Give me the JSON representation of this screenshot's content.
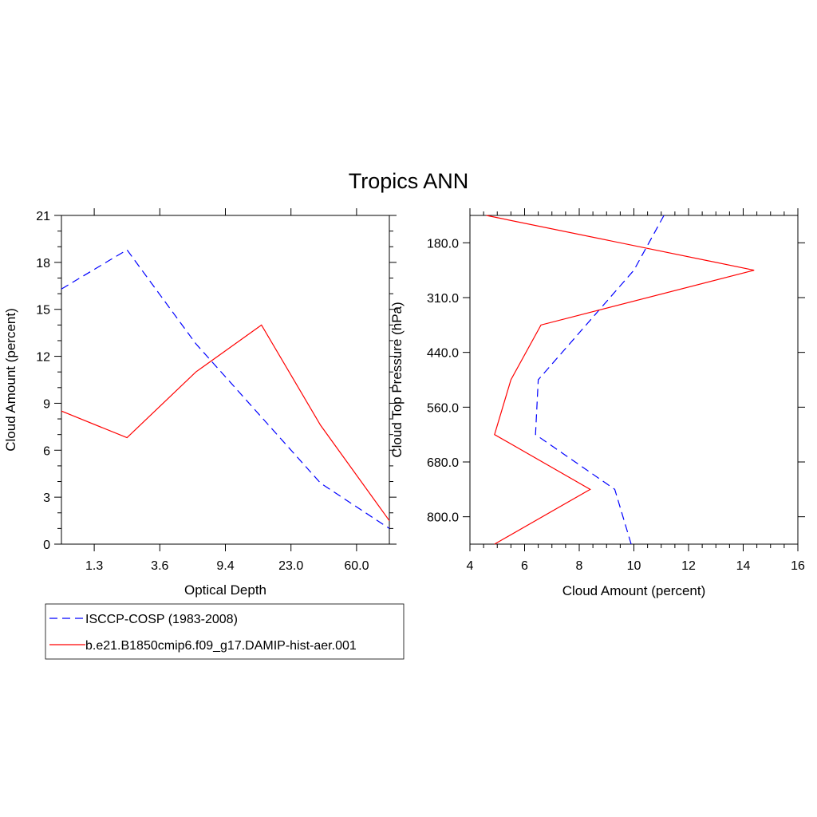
{
  "title": "Tropics ANN",
  "colors": {
    "obs": "#0000ff",
    "model": "#ff0000",
    "axis": "#000000"
  },
  "legend": [
    {
      "label": "ISCCP-COSP (1983-2008)",
      "color": "#0000ff",
      "dash": "dashed"
    },
    {
      "label": "b.e21.B1850cmip6.f09_g17.DAMIP-hist-aer.001",
      "color": "#ff0000",
      "dash": "solid"
    }
  ],
  "chart_data": [
    {
      "type": "line",
      "panel": "left",
      "xlabel": "Optical Depth",
      "ylabel": "Cloud Amount (percent)",
      "xticklabels": [
        "1.3",
        "3.6",
        "9.4",
        "23.0",
        "60.0"
      ],
      "x_index_range": [
        0,
        10
      ],
      "xtick_index": [
        1,
        3,
        5,
        7,
        9
      ],
      "ylim": [
        0,
        21
      ],
      "yticks": [
        0,
        3,
        6,
        9,
        12,
        15,
        18,
        21
      ],
      "series": [
        {
          "name": "ISCCP-COSP (1983-2008)",
          "x_index": [
            0,
            2,
            4.1,
            7.9,
            10
          ],
          "values": [
            16.3,
            18.8,
            12.8,
            3.9,
            1.0
          ]
        },
        {
          "name": "b.e21.B1850cmip6.f09_g17.DAMIP-hist-aer.001",
          "x_index": [
            0,
            2,
            4.1,
            6.1,
            7.9,
            10
          ],
          "values": [
            8.5,
            6.8,
            11.0,
            14.0,
            7.6,
            1.5
          ]
        }
      ]
    },
    {
      "type": "line",
      "panel": "right",
      "xlabel": "Cloud Amount (percent)",
      "ylabel": "Cloud Top Pressure (hPa)",
      "xlim": [
        4,
        16
      ],
      "xticks": [
        4,
        6,
        8,
        10,
        12,
        14,
        16
      ],
      "yticklabels": [
        "180.0",
        "310.0",
        "440.0",
        "560.0",
        "680.0",
        "800.0"
      ],
      "y_index_range": [
        0,
        12
      ],
      "ytick_index": [
        1,
        3,
        5,
        7,
        9,
        11
      ],
      "series": [
        {
          "name": "ISCCP-COSP (1983-2008)",
          "y_index": [
            0,
            2,
            6,
            8,
            10,
            12
          ],
          "values": [
            11.1,
            10.0,
            6.5,
            6.4,
            9.3,
            9.9
          ]
        },
        {
          "name": "b.e21.B1850cmip6.f09_g17.DAMIP-hist-aer.001",
          "y_index": [
            0,
            2,
            4,
            6,
            8,
            10,
            12
          ],
          "values": [
            4.6,
            14.4,
            6.6,
            5.5,
            4.9,
            8.4,
            4.9
          ]
        }
      ]
    }
  ]
}
